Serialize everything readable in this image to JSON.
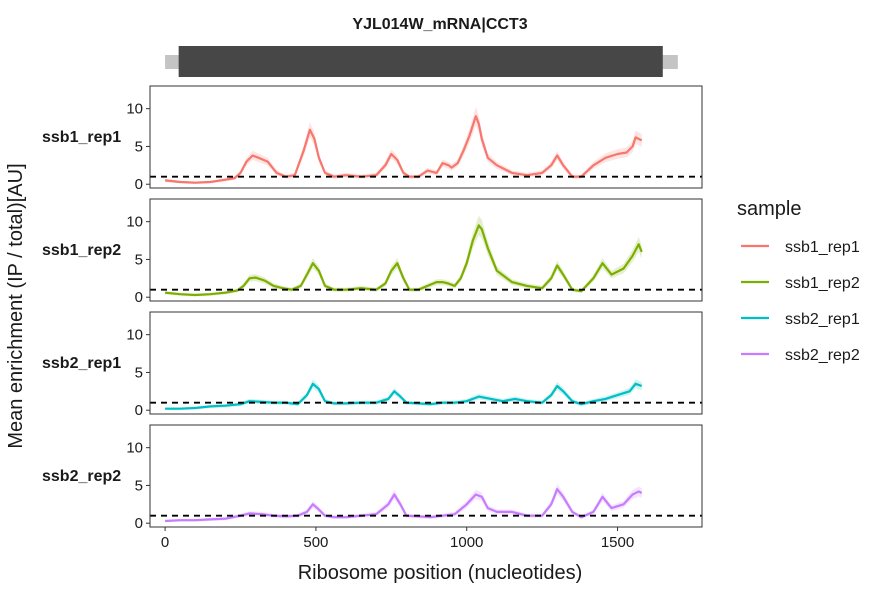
{
  "chart_data": {
    "type": "line",
    "title": "YJL014W_mRNA|CCT3",
    "xlabel": "Ribosome position (nucleotides)",
    "ylabel": "Mean enrichment (IP / total)[AU]",
    "xlim": [
      -50,
      1780
    ],
    "ylim": [
      -0.5,
      13
    ],
    "x_ticks": [
      0,
      500,
      1000,
      1500
    ],
    "y_ticks": [
      0,
      5,
      10
    ],
    "reference_line_y": 1,
    "gene_model": {
      "utr_start": 0,
      "cds_start": 45,
      "cds_end": 1650,
      "utr_end": 1700
    },
    "legend": {
      "title": "sample",
      "position": "right"
    },
    "facets": [
      "ssb1_rep1",
      "ssb1_rep2",
      "ssb2_rep1",
      "ssb2_rep2"
    ],
    "series": [
      {
        "name": "ssb1_rep1",
        "color": "#F8766D",
        "x": [
          0,
          50,
          100,
          150,
          200,
          230,
          250,
          270,
          290,
          310,
          340,
          370,
          400,
          430,
          460,
          480,
          495,
          510,
          530,
          560,
          600,
          650,
          700,
          730,
          750,
          770,
          790,
          810,
          840,
          870,
          900,
          920,
          940,
          950,
          970,
          990,
          1010,
          1030,
          1040,
          1050,
          1070,
          1100,
          1150,
          1200,
          1250,
          1280,
          1300,
          1320,
          1350,
          1380,
          1420,
          1460,
          1500,
          1530,
          1550,
          1560,
          1580
        ],
        "values": [
          0.5,
          0.3,
          0.2,
          0.3,
          0.6,
          0.8,
          1.5,
          3.0,
          3.8,
          3.5,
          3.0,
          1.5,
          1.0,
          1.2,
          4.5,
          7.2,
          6.0,
          3.5,
          1.5,
          1.0,
          1.2,
          1.0,
          1.2,
          2.5,
          4.0,
          3.2,
          1.5,
          1.0,
          1.0,
          1.8,
          1.5,
          2.8,
          2.5,
          2.2,
          2.8,
          4.5,
          6.5,
          9.0,
          8.0,
          6.0,
          3.5,
          2.5,
          1.5,
          1.2,
          1.5,
          2.5,
          3.8,
          2.5,
          1.0,
          1.0,
          2.5,
          3.5,
          4.0,
          4.2,
          5.0,
          6.2,
          5.8
        ]
      },
      {
        "name": "ssb1_rep2",
        "color": "#7CAE00",
        "x": [
          0,
          50,
          100,
          150,
          200,
          240,
          260,
          280,
          300,
          330,
          360,
          390,
          420,
          450,
          470,
          490,
          510,
          530,
          560,
          600,
          650,
          700,
          730,
          750,
          770,
          790,
          810,
          840,
          870,
          900,
          920,
          940,
          960,
          980,
          1000,
          1020,
          1040,
          1050,
          1070,
          1100,
          1150,
          1200,
          1250,
          1280,
          1300,
          1320,
          1350,
          1380,
          1420,
          1450,
          1480,
          1520,
          1550,
          1570,
          1580
        ],
        "values": [
          0.6,
          0.4,
          0.3,
          0.4,
          0.6,
          0.9,
          1.5,
          2.5,
          2.6,
          2.2,
          1.5,
          1.2,
          1.0,
          1.5,
          3.0,
          4.5,
          3.5,
          1.5,
          1.0,
          1.0,
          1.2,
          1.0,
          1.8,
          3.5,
          4.5,
          2.5,
          1.0,
          1.0,
          1.5,
          2.0,
          2.0,
          1.8,
          1.5,
          2.5,
          4.5,
          7.5,
          9.5,
          9.0,
          6.5,
          3.5,
          2.0,
          1.5,
          1.2,
          2.5,
          4.2,
          3.0,
          1.0,
          0.8,
          2.5,
          4.5,
          3.0,
          3.8,
          5.5,
          7.0,
          6.0
        ]
      },
      {
        "name": "ssb2_rep1",
        "color": "#00BFC4",
        "x": [
          0,
          50,
          100,
          150,
          200,
          250,
          280,
          320,
          360,
          400,
          440,
          470,
          490,
          510,
          530,
          560,
          600,
          650,
          700,
          740,
          760,
          780,
          800,
          840,
          880,
          920,
          960,
          1000,
          1040,
          1080,
          1120,
          1160,
          1200,
          1250,
          1280,
          1300,
          1320,
          1350,
          1380,
          1420,
          1460,
          1500,
          1540,
          1560,
          1580
        ],
        "values": [
          0.2,
          0.2,
          0.3,
          0.5,
          0.6,
          0.8,
          1.2,
          1.1,
          1.0,
          1.0,
          0.8,
          2.0,
          3.5,
          2.8,
          1.2,
          0.9,
          0.9,
          1.0,
          1.0,
          1.5,
          2.5,
          1.8,
          1.0,
          0.9,
          0.8,
          1.0,
          1.0,
          1.2,
          1.8,
          1.5,
          1.2,
          1.5,
          1.2,
          1.0,
          2.0,
          3.2,
          2.5,
          1.2,
          0.8,
          1.2,
          1.5,
          2.0,
          2.5,
          3.5,
          3.2
        ]
      },
      {
        "name": "ssb2_rep2",
        "color": "#C77CFF",
        "x": [
          0,
          50,
          100,
          150,
          200,
          250,
          280,
          320,
          360,
          400,
          440,
          470,
          490,
          510,
          530,
          560,
          600,
          650,
          700,
          740,
          760,
          780,
          800,
          840,
          880,
          920,
          960,
          1000,
          1030,
          1050,
          1070,
          1100,
          1150,
          1200,
          1250,
          1280,
          1300,
          1320,
          1350,
          1380,
          1420,
          1450,
          1480,
          1520,
          1550,
          1570,
          1580
        ],
        "values": [
          0.3,
          0.4,
          0.4,
          0.5,
          0.6,
          1.0,
          1.3,
          1.2,
          1.0,
          0.9,
          1.0,
          1.5,
          2.5,
          1.8,
          1.0,
          0.8,
          0.8,
          1.0,
          1.2,
          2.5,
          3.8,
          2.5,
          1.0,
          0.9,
          0.8,
          1.0,
          1.2,
          2.5,
          3.8,
          3.5,
          2.0,
          1.5,
          1.5,
          1.0,
          1.0,
          2.5,
          4.5,
          3.5,
          1.5,
          0.8,
          1.5,
          3.5,
          2.0,
          2.5,
          3.8,
          4.2,
          4.0
        ]
      }
    ]
  }
}
